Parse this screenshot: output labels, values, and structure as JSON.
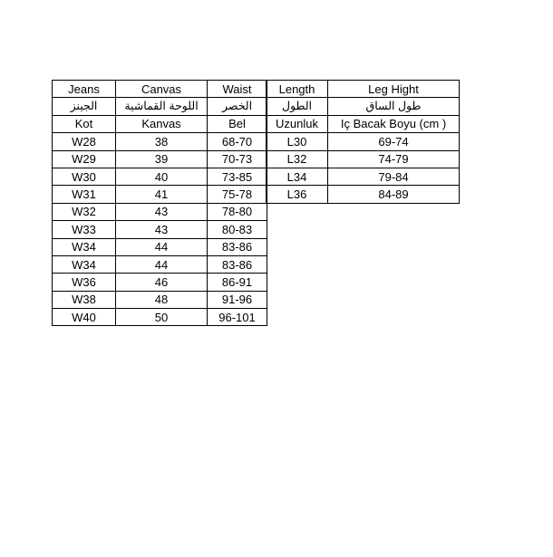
{
  "page": {
    "background": "#ffffff"
  },
  "size_chart": {
    "colors": {
      "border": "#000000",
      "text": "#000000",
      "background": "#ffffff"
    },
    "left_table": {
      "header_en": [
        "Jeans",
        "Canvas",
        "Waist"
      ],
      "header_ar": [
        "الجينز",
        "اللوحة القماشية",
        "الخصر"
      ],
      "header_tr": [
        "Kot",
        "Kanvas",
        "Bel"
      ],
      "rows": [
        [
          "W28",
          "38",
          "68-70"
        ],
        [
          "W29",
          "39",
          "70-73"
        ],
        [
          "W30",
          "40",
          "73-85"
        ],
        [
          "W31",
          "41",
          "75-78"
        ],
        [
          "W32",
          "43",
          "78-80"
        ],
        [
          "W33",
          "43",
          "80-83"
        ],
        [
          "W34",
          "44",
          "83-86"
        ],
        [
          "W34",
          "44",
          "83-86"
        ],
        [
          "W36",
          "46",
          "86-91"
        ],
        [
          "W38",
          "48",
          "91-96"
        ],
        [
          "W40",
          "50",
          "96-101"
        ]
      ]
    },
    "right_table": {
      "header_en": [
        "Length",
        "Leg Hight"
      ],
      "header_ar": [
        "الطول",
        "طول الساق"
      ],
      "header_tr": [
        "Uzunluk",
        "Iç Bacak Boyu (cm )"
      ],
      "rows": [
        [
          "L30",
          "69-74"
        ],
        [
          "L32",
          "74-79"
        ],
        [
          "L34",
          "79-84"
        ],
        [
          "L36",
          "84-89"
        ]
      ]
    }
  }
}
